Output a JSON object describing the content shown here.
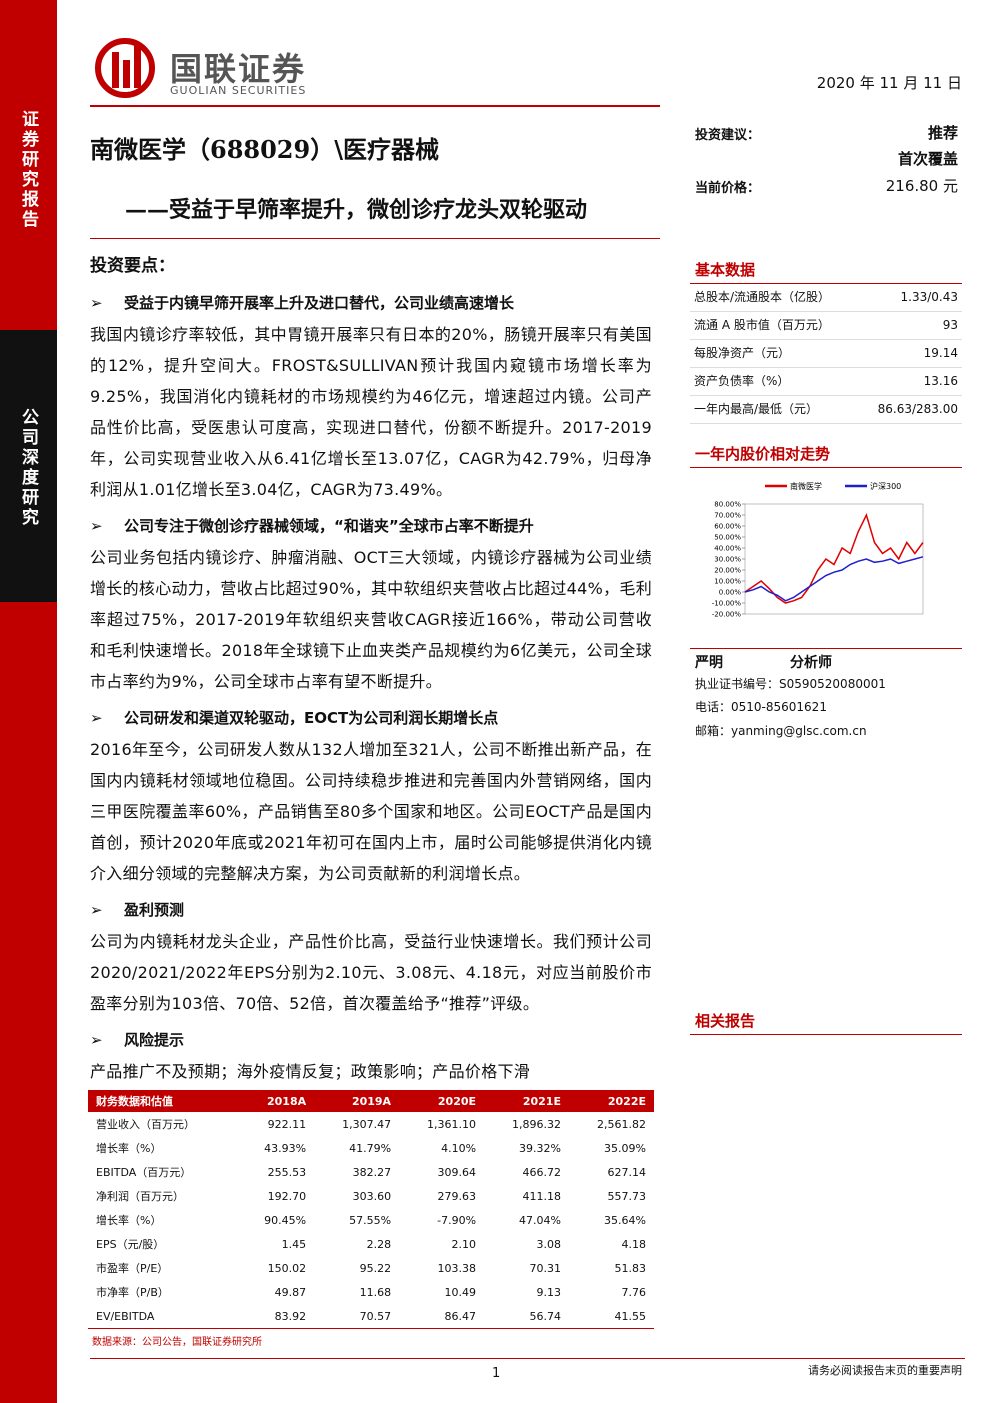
{
  "header": {
    "logo_cn": "国联证券",
    "logo_en": "GUOLIAN SECURITIES",
    "date": "2020 年 11 月 11 日"
  },
  "sidebar": {
    "top": "证券研究报告",
    "middle": "公司深度研究"
  },
  "title": "南微医学（688029）\\医疗器械",
  "subtitle": "——受益于早筛率提升，微创诊疗龙头双轮驱动",
  "rating": {
    "label": "投资建议：",
    "value": "推荐",
    "value2": "首次覆盖"
  },
  "price": {
    "label": "当前价格：",
    "value": "216.80 元"
  },
  "key_points": {
    "title": "投资要点：",
    "sections": [
      {
        "heading": "受益于内镜早筛开展率上升及进口替代，公司业绩高速增长",
        "body": "我国内镜诊疗率较低，其中胃镜开展率只有日本的20%，肠镜开展率只有美国的12%，提升空间大。FROST&SULLIVAN预计我国内窥镜市场增长率为9.25%，我国消化内镜耗材的市场规模约为46亿元，增速超过内镜。公司产品性价比高，受医患认可度高，实现进口替代，份额不断提升。2017-2019年，公司实现营业收入从6.41亿增长至13.07亿，CAGR为42.79%，归母净利润从1.01亿增长至3.04亿，CAGR为73.49%。"
      },
      {
        "heading": "公司专注于微创诊疗器械领域，“和谐夹”全球市占率不断提升",
        "body": "公司业务包括内镜诊疗、肿瘤消融、OCT三大领域，内镜诊疗器械为公司业绩增长的核心动力，营收占比超过90%，其中软组织夹营收占比超过44%，毛利率超过75%，2017-2019年软组织夹营收CAGR接近166%，带动公司营收和毛利快速增长。2018年全球镜下止血夹类产品规模约为6亿美元，公司全球市占率约为9%，公司全球市占率有望不断提升。"
      },
      {
        "heading": "公司研发和渠道双轮驱动，EOCT为公司利润长期增长点",
        "body": " 2016年至今，公司研发人数从132人增加至321人，公司不断推出新产品，在国内内镜耗材领域地位稳固。公司持续稳步推进和完善国内外营销网络，国内三甲医院覆盖率60%，产品销售至80多个国家和地区。公司EOCT产品是国内首创，预计2020年底或2021年初可在国内上市，届时公司能够提供消化内镜介入细分领域的完整解决方案，为公司贡献新的利润增长点。"
      },
      {
        "heading": "盈利预测",
        "body": "公司为内镜耗材龙头企业，产品性价比高，受益行业快速增长。我们预计公司2020/2021/2022年EPS分别为2.10元、3.08元、4.18元，对应当前股价市盈率分别为103倍、70倍、52倍，首次覆盖给予“推荐”评级。"
      },
      {
        "heading": "风险提示",
        "body": "产品推广不及预期；海外疫情反复；政策影响；产品价格下滑"
      }
    ]
  },
  "basic_data": {
    "title": "基本数据",
    "rows": [
      [
        "总股本/流通股本（亿股）",
        "1.33/0.43"
      ],
      [
        "流通 A 股市值（百万元）",
        "93"
      ],
      [
        "每股净资产（元）",
        "19.14"
      ],
      [
        "资产负债率（%）",
        "13.16"
      ],
      [
        "一年内最高/最低（元）",
        "86.63/283.00"
      ]
    ]
  },
  "stock_chart": {
    "type": "line",
    "title": "一年内股价相对走势",
    "categories": [
      null,
      null,
      null,
      null,
      null,
      null,
      null,
      null,
      null,
      null,
      null,
      null,
      null,
      null,
      null,
      null,
      null,
      null,
      null,
      null,
      null,
      null,
      null
    ],
    "series": [
      {
        "name": "南微医学",
        "color": "#e00000",
        "values": [
          0,
          5,
          10,
          3,
          -5,
          -10,
          -8,
          -5,
          5,
          20,
          30,
          25,
          40,
          35,
          55,
          70,
          45,
          35,
          40,
          30,
          45,
          35,
          45
        ]
      },
      {
        "name": "沪深300",
        "color": "#1f1fd0",
        "values": [
          0,
          2,
          5,
          0,
          -3,
          -8,
          -5,
          0,
          5,
          10,
          15,
          18,
          20,
          25,
          28,
          30,
          27,
          28,
          30,
          26,
          28,
          30,
          32
        ]
      }
    ],
    "ylim": [
      -20,
      80
    ],
    "yticks": [
      {
        "value": -20,
        "label": "-20.00%"
      },
      {
        "value": -10,
        "label": "-10.00%"
      },
      {
        "value": 0,
        "label": "0.00%"
      },
      {
        "value": 10,
        "label": "10.00%"
      },
      {
        "value": 20,
        "label": "20.00%"
      },
      {
        "value": 30,
        "label": "30.00%"
      },
      {
        "value": 40,
        "label": "40.00%"
      },
      {
        "value": 50,
        "label": "50.00%"
      },
      {
        "value": 60,
        "label": "60.00%"
      },
      {
        "value": 70,
        "label": "70.00%"
      },
      {
        "value": 80,
        "label": "80.00%"
      }
    ]
  },
  "analyst": {
    "name": "严明",
    "role": "分析师",
    "cert": "执业证书编号：S0590520080001",
    "phone": "电话：0510-85601621",
    "email": "邮箱：yanming@glsc.com.cn"
  },
  "related": {
    "title": "相关报告"
  },
  "table": {
    "headers": [
      "财务数据和估值",
      "2018A",
      "2019A",
      "2020E",
      "2021E",
      "2022E"
    ],
    "rows": [
      [
        "营业收入（百万元）",
        "922.11",
        "1,307.47",
        "1,361.10",
        "1,896.32",
        "2,561.82"
      ],
      [
        "增长率（%）",
        "43.93%",
        "41.79%",
        "4.10%",
        "39.32%",
        "35.09%"
      ],
      [
        "EBITDA（百万元）",
        "255.53",
        "382.27",
        "309.64",
        "466.72",
        "627.14"
      ],
      [
        "净利润（百万元）",
        "192.70",
        "303.60",
        "279.63",
        "411.18",
        "557.73"
      ],
      [
        "增长率（%）",
        "90.45%",
        "57.55%",
        "-7.90%",
        "47.04%",
        "35.64%"
      ],
      [
        "EPS（元/股）",
        "1.45",
        "2.28",
        "2.10",
        "3.08",
        "4.18"
      ],
      [
        "市盈率（P/E）",
        "150.02",
        "95.22",
        "103.38",
        "70.31",
        "51.83"
      ],
      [
        "市净率（P/B）",
        "49.87",
        "11.68",
        "10.49",
        "9.13",
        "7.76"
      ],
      [
        "EV/EBITDA",
        "83.92",
        "70.57",
        "86.47",
        "56.74",
        "41.55"
      ]
    ]
  },
  "source": "数据来源：公司公告，国联证券研究所",
  "page_number": "1",
  "disclaimer": "请务必阅读报告末页的重要声明"
}
